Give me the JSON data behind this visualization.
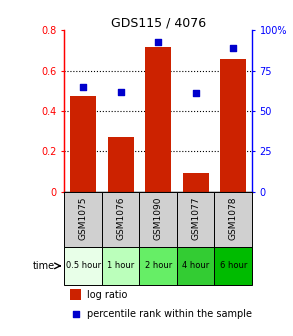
{
  "title": "GDS115 / 4076",
  "samples": [
    "GSM1075",
    "GSM1076",
    "GSM1090",
    "GSM1077",
    "GSM1078"
  ],
  "time_labels": [
    "0.5 hour",
    "1 hour",
    "2 hour",
    "4 hour",
    "6 hour"
  ],
  "log_ratio": [
    0.475,
    0.27,
    0.715,
    0.09,
    0.655
  ],
  "percentile": [
    65,
    62,
    93,
    61,
    89
  ],
  "bar_color": "#cc2200",
  "dot_color": "#0000cc",
  "ylim_left": [
    0,
    0.8
  ],
  "ylim_right": [
    0,
    100
  ],
  "yticks_left": [
    0,
    0.2,
    0.4,
    0.6,
    0.8
  ],
  "ytick_labels_left": [
    "0",
    "0.2",
    "0.4",
    "0.6",
    "0.8"
  ],
  "yticks_right": [
    0,
    25,
    50,
    75,
    100
  ],
  "ytick_labels_right": [
    "0",
    "25",
    "50",
    "75",
    "100%"
  ],
  "time_colors": [
    "#e8ffe8",
    "#bbffbb",
    "#66ee66",
    "#33cc33",
    "#00bb00"
  ],
  "sample_bg_color": "#d0d0d0",
  "legend_bar_label": "log ratio",
  "legend_dot_label": "percentile rank within the sample"
}
